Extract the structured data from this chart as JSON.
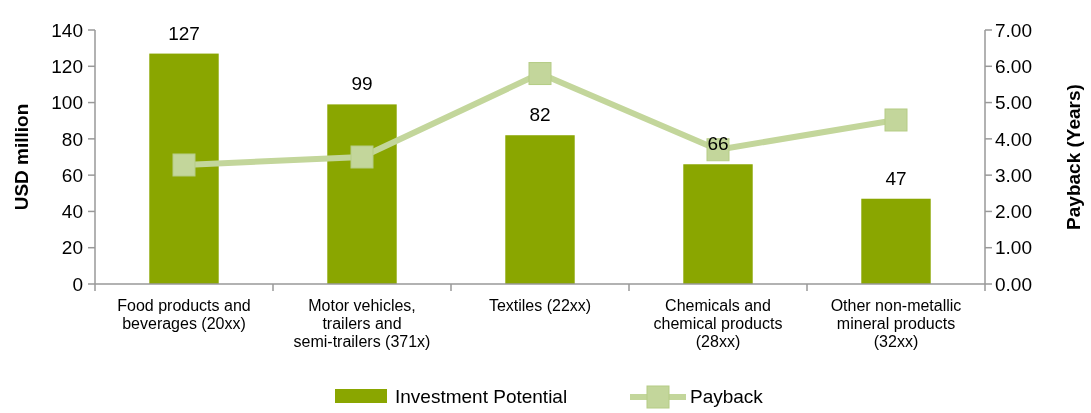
{
  "chart_data": {
    "type": "bar",
    "ylabel": "USD million",
    "y2label": "Payback (Years)",
    "categories": [
      "Food products and beverages (20xx)",
      "Motor vehicles, trailers and semi-trailers (371x)",
      "Textiles (22xx)",
      "Chemicals and chemical products (28xx)",
      "Other non-metallic mineral products (32xx)"
    ],
    "series": [
      {
        "name": "Investment Potential",
        "color": "#8aa600",
        "values": [
          127,
          99,
          82,
          66,
          47
        ],
        "value_labels": [
          "127",
          "99",
          "82",
          "66",
          "47"
        ]
      },
      {
        "name": "Payback",
        "type": "line",
        "axis": "y2",
        "color": "#c3d69b",
        "values": [
          3.28,
          3.5,
          5.8,
          3.7,
          4.52
        ]
      }
    ],
    "ylim": [
      0,
      140
    ],
    "yticks": [
      0,
      20,
      40,
      60,
      80,
      100,
      120,
      140
    ],
    "y2lim": [
      0,
      7
    ],
    "y2ticks": [
      {
        "value": 0,
        "label": "0.00"
      },
      {
        "value": 1,
        "label": "1.00"
      },
      {
        "value": 2,
        "label": "2.00"
      },
      {
        "value": 3,
        "label": "3.00"
      },
      {
        "value": 4,
        "label": "4.00"
      },
      {
        "value": 5,
        "label": "5.00"
      },
      {
        "value": 6,
        "label": "6.00"
      },
      {
        "value": 7,
        "label": "7.00"
      }
    ],
    "marker": "square",
    "legend": "bottom",
    "grid": false
  }
}
